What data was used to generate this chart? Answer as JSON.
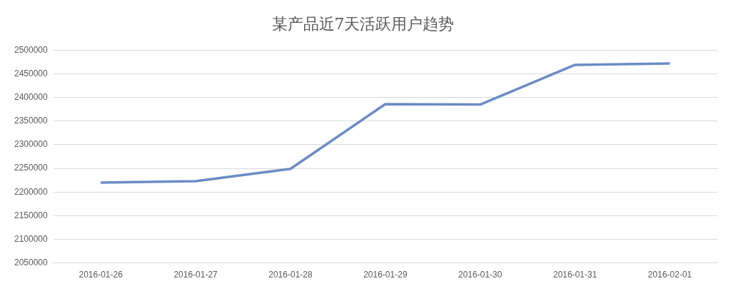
{
  "chart_data": {
    "type": "line",
    "title": "某产品近7天活跃用户趋势",
    "categories": [
      "2016-01-26",
      "2016-01-27",
      "2016-01-28",
      "2016-01-29",
      "2016-01-30",
      "2016-01-31",
      "2016-02-01"
    ],
    "series": [
      {
        "color": "#6a8cc6",
        "values": [
          2220000,
          2223000,
          2249000,
          2386000,
          2385000,
          2469000,
          2472000
        ]
      }
    ],
    "ylim": [
      2050000,
      2500000
    ],
    "yticks": [
      2050000,
      2100000,
      2150000,
      2200000,
      2250000,
      2300000,
      2350000,
      2400000,
      2450000,
      2500000
    ],
    "grid": "y",
    "legend": false,
    "marker": "none",
    "line_style": "solid"
  }
}
